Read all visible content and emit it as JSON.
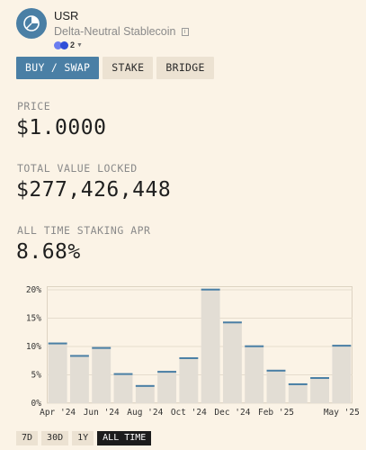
{
  "token": {
    "name": "USR",
    "subtitle": "Delta-Neutral Stablecoin",
    "chain_count": "2"
  },
  "tabs": [
    {
      "label": "BUY / SWAP",
      "active": true
    },
    {
      "label": "STAKE",
      "active": false
    },
    {
      "label": "BRIDGE",
      "active": false
    }
  ],
  "stats": {
    "price_label": "PRICE",
    "price_value": "$1.0000",
    "tvl_label": "TOTAL VALUE LOCKED",
    "tvl_value": "$277,426,448",
    "apr_label": "ALL TIME STAKING APR",
    "apr_value": "8.68%"
  },
  "chart_data": {
    "type": "bar",
    "title": "",
    "xlabel": "",
    "ylabel": "",
    "ylim": [
      0,
      20
    ],
    "y_ticks": [
      "0%",
      "5%",
      "10%",
      "15%",
      "20%"
    ],
    "x_tick_labels": [
      "Apr '24",
      "Jun '24",
      "Aug '24",
      "Oct '24",
      "Dec '24",
      "Feb '25",
      "May '25"
    ],
    "categories": [
      "Apr '24",
      "May '24",
      "Jun '24",
      "Jul '24",
      "Aug '24",
      "Sep '24",
      "Oct '24",
      "Nov '24",
      "Dec '24",
      "Jan '25",
      "Feb '25",
      "Mar '25",
      "Apr '25",
      "May '25"
    ],
    "values": [
      10.7,
      8.5,
      9.9,
      5.3,
      3.2,
      5.7,
      8.1,
      20.2,
      14.4,
      10.2,
      5.9,
      3.5,
      4.6,
      10.3
    ],
    "bar_color": "#e2ddd4",
    "bar_top_color": "#4a7fa5",
    "grid": true
  },
  "ranges": [
    {
      "label": "7D",
      "active": false
    },
    {
      "label": "30D",
      "active": false
    },
    {
      "label": "1Y",
      "active": false
    },
    {
      "label": "ALL TIME",
      "active": true
    }
  ]
}
